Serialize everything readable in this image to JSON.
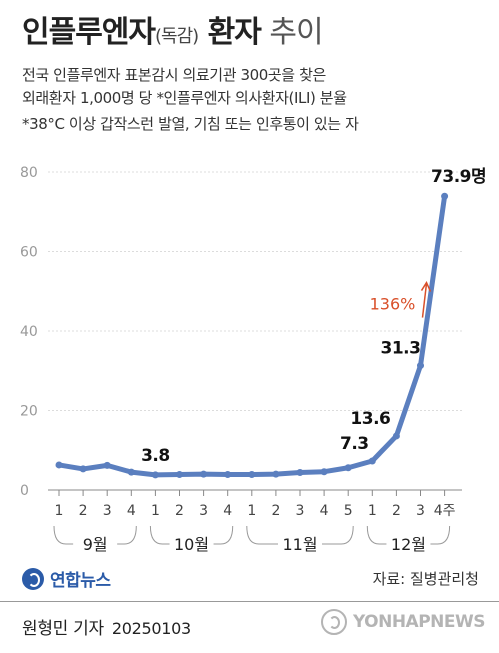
{
  "header": {
    "title_main": "인플루엔자",
    "title_paren": "(독감)",
    "title_bold2": " 환자",
    "title_light": " 추이",
    "subtitle_line1": "전국 인플루엔자 표본감시 의료기관 300곳을 찾은",
    "subtitle_line2": "외래환자 1,000명 당 *인플루엔자 의사환자(ILI) 분율",
    "note": "*38°C 이상 갑작스런 발열, 기침 또는 인후통이 있는 자"
  },
  "chart_data": {
    "type": "line",
    "x_ticks": [
      "1",
      "2",
      "3",
      "4",
      "1",
      "2",
      "3",
      "4",
      "1",
      "2",
      "3",
      "4",
      "5",
      "1",
      "2",
      "3",
      "4주"
    ],
    "month_groups": [
      {
        "label": "9월",
        "count": 4
      },
      {
        "label": "10월",
        "count": 4
      },
      {
        "label": "11월",
        "count": 5
      },
      {
        "label": "12월",
        "count": 4
      }
    ],
    "values": [
      6.3,
      5.3,
      6.2,
      4.5,
      3.8,
      3.9,
      4.0,
      3.9,
      3.9,
      4.0,
      4.4,
      4.6,
      5.6,
      7.3,
      13.6,
      31.3,
      73.9
    ],
    "data_labels": [
      {
        "index": 4,
        "text": "3.8"
      },
      {
        "index": 13,
        "text": "7.3"
      },
      {
        "index": 14,
        "text": "13.6"
      },
      {
        "index": 15,
        "text": "31.3"
      },
      {
        "index": 16,
        "text": "73.9명"
      }
    ],
    "y_ticks": [
      0,
      20,
      40,
      60,
      80
    ],
    "ylim": [
      0,
      80
    ],
    "annotation": "136%",
    "line_color": "#5b7fbf",
    "annotation_color": "#d9502a"
  },
  "footer": {
    "logo_text": "연합뉴스",
    "source": "자료: 질병관리청",
    "author": "원형민 기자",
    "date": "20250103",
    "watermark": "YONHAPNEWS"
  }
}
